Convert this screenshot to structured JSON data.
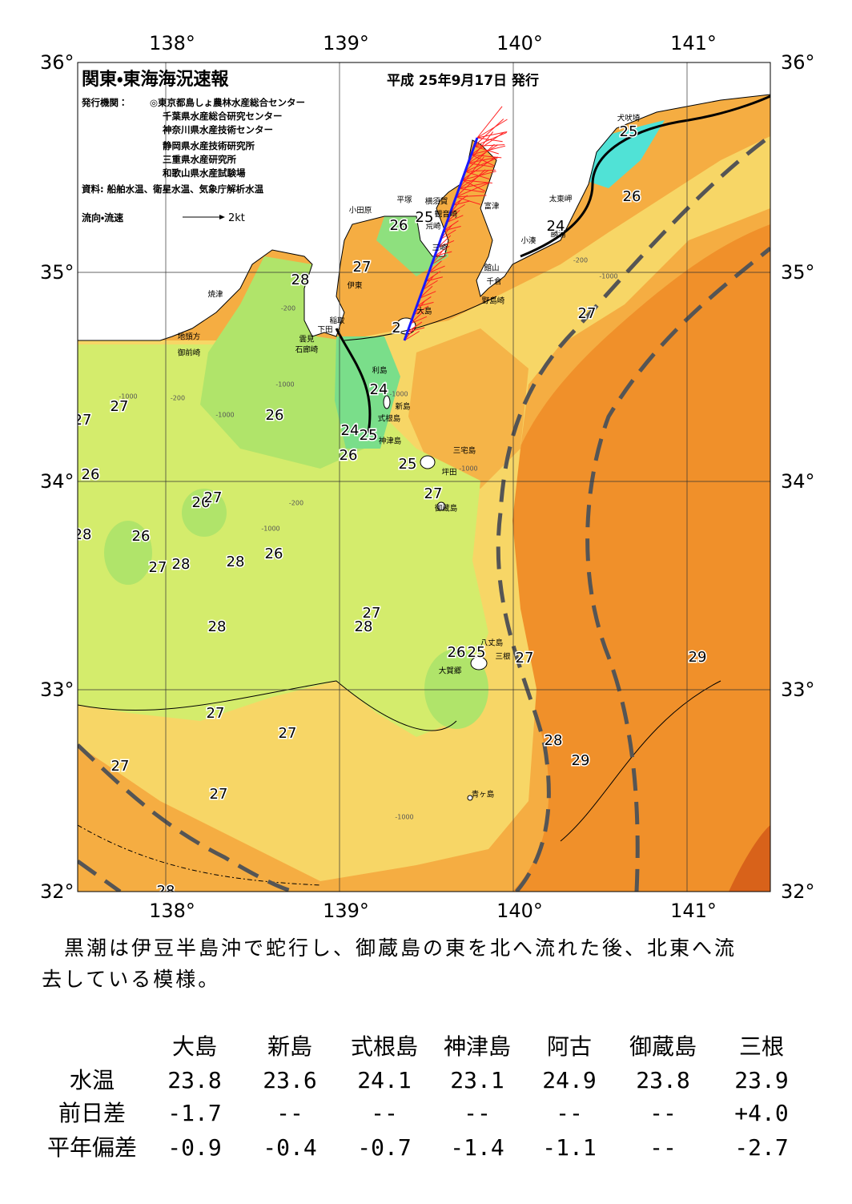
{
  "header": {
    "title": "関東・東海海況速報",
    "date": "平成 25年9月17日 発行",
    "issuer_label": "発行機関：",
    "issuers": [
      "◎東京都島しょ農林水産総合センター",
      "千葉県水産総合研究センター",
      "神奈川県水産技術センター",
      "静岡県水産技術研究所",
      "三重県水産研究所",
      "和歌山県水産試験場"
    ],
    "source": "資料: 船舶水温、衛星水温、気象庁解析水温",
    "legend_label": "流向・流速",
    "legend_scale": "2kt"
  },
  "map": {
    "lon_labels": [
      "138°",
      "139°",
      "140°",
      "141°"
    ],
    "lat_labels": [
      "36°",
      "35°",
      "34°",
      "33°",
      "32°"
    ],
    "places": [
      "犬吠埼",
      "太東岬",
      "勝浦",
      "小湊",
      "富津",
      "館山",
      "千倉",
      "野島崎",
      "横須賀",
      "観音崎",
      "荒崎",
      "三崎",
      "平塚",
      "小田原",
      "伊東",
      "焼津",
      "稲取",
      "下田",
      "雲見",
      "石廊崎",
      "地頭方",
      "御前崎",
      "大島",
      "利島",
      "新島",
      "式根島",
      "神津島",
      "三宅島",
      "坪田",
      "御蔵島",
      "八丈島",
      "三根",
      "大賀郷",
      "青ヶ島"
    ],
    "temperatures": [
      25,
      26,
      24,
      26,
      25,
      27,
      28,
      27,
      2,
      24,
      27,
      26,
      27,
      24,
      25,
      26,
      25,
      26,
      27,
      26,
      27,
      28,
      26,
      26,
      27,
      28,
      28,
      27,
      28,
      28,
      26,
      25,
      27,
      29,
      27,
      27,
      28,
      29,
      27,
      27,
      28
    ],
    "depths": [
      "-1000",
      "-200",
      "-1000",
      "-200",
      "-1000",
      "-1000",
      "-200",
      "-1000",
      "-1000",
      "-1000",
      "-200",
      "-1000"
    ]
  },
  "text": {
    "paragraph": [
      "黒潮は伊豆半島沖で蛇行し、御蔵島の東を北へ流れた後、北東へ流",
      "去している模様。"
    ]
  },
  "table": {
    "columns": [
      "大島",
      "新島",
      "式根島",
      "神津島",
      "阿古",
      "御蔵島",
      "三根"
    ],
    "rows": [
      {
        "label": "水温",
        "cells": [
          "23.8",
          "23.6",
          "24.1",
          "23.1",
          "24.9",
          "23.8",
          "23.9"
        ]
      },
      {
        "label": "前日差",
        "cells": [
          "-1.7",
          "--",
          "--",
          "--",
          "--",
          "--",
          "+4.0"
        ]
      },
      {
        "label": "平年偏差",
        "cells": [
          "-0.9",
          "-0.4",
          "-0.7",
          "-1.4",
          "-1.1",
          "--",
          "-2.7"
        ]
      }
    ]
  }
}
